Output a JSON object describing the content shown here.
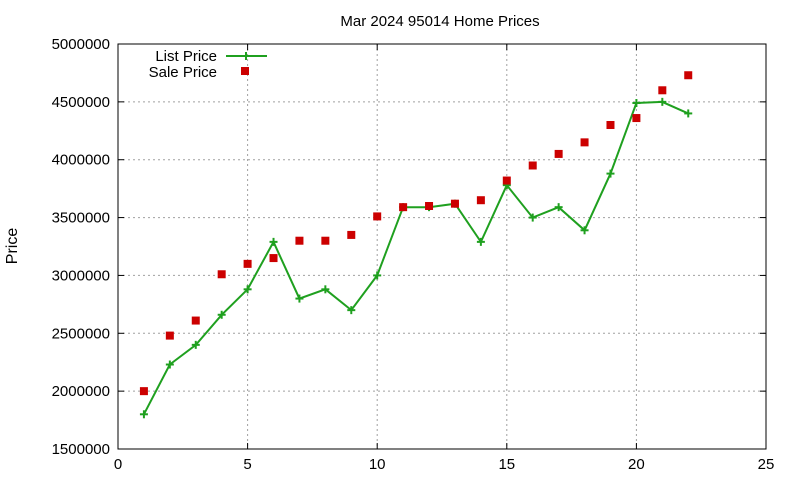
{
  "chart_data": {
    "type": "line",
    "title": "Mar 2024 95014 Home Prices",
    "xlabel": "",
    "ylabel": "Price",
    "xlim": [
      0,
      25
    ],
    "ylim": [
      1500000,
      5000000
    ],
    "xticks": [
      0,
      5,
      10,
      15,
      20,
      25
    ],
    "xtick_labels": [
      "0",
      "5",
      "10",
      "15",
      "20",
      "25"
    ],
    "yticks": [
      1500000,
      2000000,
      2500000,
      3000000,
      3500000,
      4000000,
      4500000,
      5000000
    ],
    "ytick_labels": [
      "1500000",
      "2000000",
      "2500000",
      "3000000",
      "3500000",
      "4000000",
      "4500000",
      "5000000"
    ],
    "grid": true,
    "legend_position": "top-left",
    "series": [
      {
        "name": "List Price",
        "style": "line-plus",
        "color": "#1fa01f",
        "x": [
          1,
          2,
          3,
          4,
          5,
          6,
          7,
          8,
          9,
          10,
          11,
          12,
          13,
          14,
          15,
          16,
          17,
          18,
          19,
          20,
          21,
          22
        ],
        "y": [
          1800000,
          2230000,
          2400000,
          2660000,
          2880000,
          3290000,
          2800000,
          2880000,
          2700000,
          3000000,
          3590000,
          3590000,
          3620000,
          3290000,
          3780000,
          3500000,
          3590000,
          3390000,
          3880000,
          4490000,
          4500000,
          4400000
        ]
      },
      {
        "name": "Sale Price",
        "style": "square",
        "color": "#cc0000",
        "x": [
          1,
          2,
          3,
          4,
          5,
          6,
          7,
          8,
          9,
          10,
          11,
          12,
          13,
          14,
          15,
          16,
          17,
          18,
          19,
          20,
          21,
          22
        ],
        "y": [
          2000000,
          2480000,
          2610000,
          3010000,
          3100000,
          3150000,
          3300000,
          3300000,
          3350000,
          3510000,
          3590000,
          3600000,
          3620000,
          3650000,
          3820000,
          3950000,
          4050000,
          4150000,
          4300000,
          4360000,
          4600000,
          4730000
        ]
      }
    ]
  }
}
